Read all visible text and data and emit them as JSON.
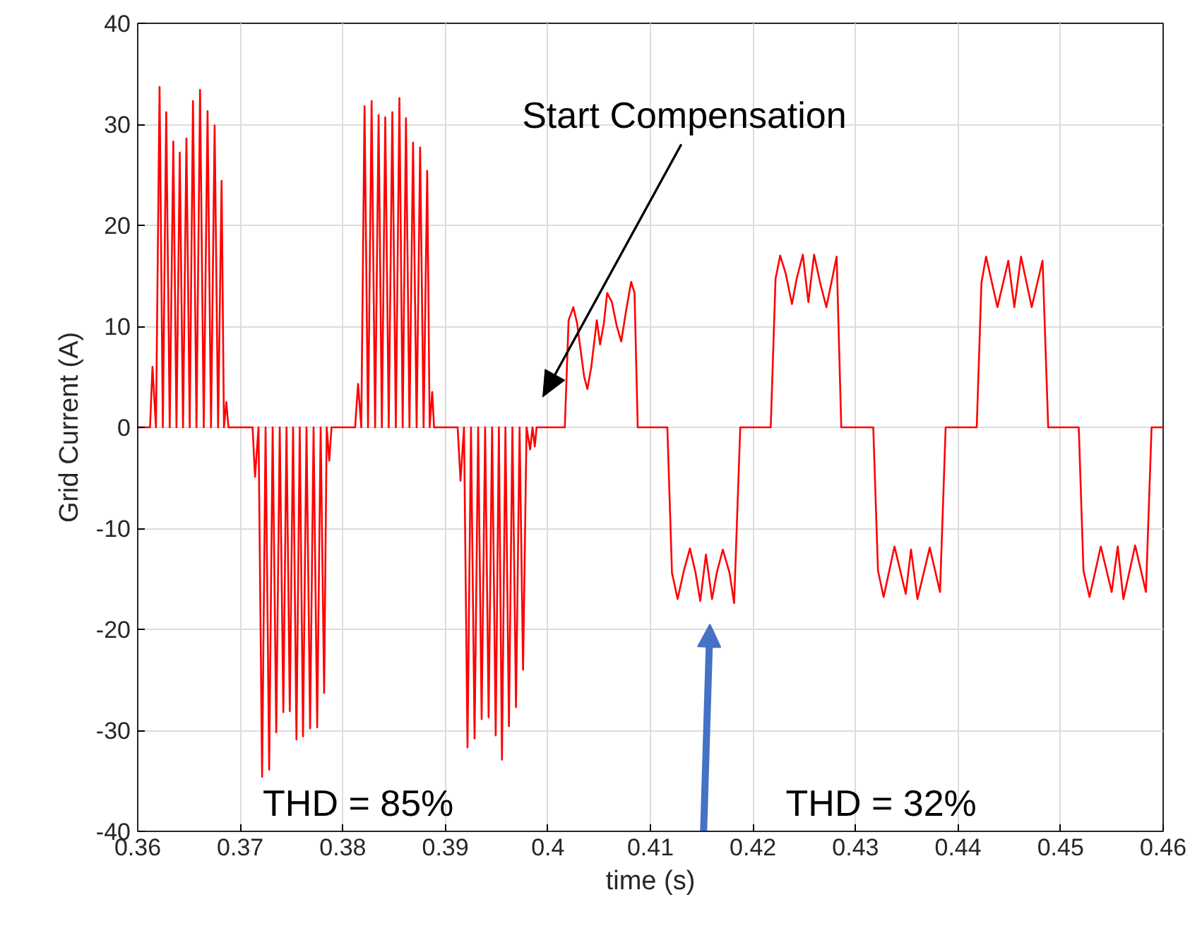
{
  "chart_data": {
    "type": "line",
    "xlabel": "time (s)",
    "ylabel": "Grid Current (A)",
    "xlim": [
      0.36,
      0.46
    ],
    "ylim": [
      -40,
      40
    ],
    "xticks": [
      0.36,
      0.37,
      0.38,
      0.39,
      0.4,
      0.41,
      0.42,
      0.43,
      0.44,
      0.45,
      0.46
    ],
    "yticks": [
      -40,
      -30,
      -20,
      -10,
      0,
      10,
      20,
      30,
      40
    ],
    "grid": true,
    "marker": "none",
    "line_style": "solid",
    "annotations": [
      "Start Compensation",
      "THD = 85%",
      "THD = 32%"
    ],
    "series": [
      {
        "color": "#ff0000",
        "x": [
          0.36,
          0.3612,
          0.36144,
          0.36178,
          0.36213,
          0.36245,
          0.36278,
          0.36312,
          0.36347,
          0.36378,
          0.3641,
          0.36442,
          0.36475,
          0.36507,
          0.36539,
          0.36573,
          0.36608,
          0.36644,
          0.36681,
          0.36715,
          0.3675,
          0.36784,
          0.36818,
          0.36841,
          0.36864,
          0.36885,
          0.3712,
          0.37144,
          0.37178,
          0.37213,
          0.37247,
          0.37282,
          0.37316,
          0.37351,
          0.37385,
          0.3742,
          0.37451,
          0.37483,
          0.37515,
          0.37548,
          0.3758,
          0.37612,
          0.37646,
          0.37681,
          0.37715,
          0.3775,
          0.37784,
          0.37818,
          0.37843,
          0.37868,
          0.3789,
          0.3812,
          0.38149,
          0.3818,
          0.38212,
          0.38246,
          0.38281,
          0.38315,
          0.38349,
          0.38381,
          0.38414,
          0.38448,
          0.38483,
          0.38517,
          0.38552,
          0.38584,
          0.38616,
          0.3865,
          0.38685,
          0.3872,
          0.38754,
          0.38788,
          0.38823,
          0.38847,
          0.38872,
          0.3889,
          0.3912,
          0.39148,
          0.39182,
          0.39216,
          0.3925,
          0.39285,
          0.3932,
          0.39354,
          0.39388,
          0.39422,
          0.39456,
          0.39491,
          0.39522,
          0.39552,
          0.39586,
          0.3962,
          0.39654,
          0.39689,
          0.39724,
          0.39758,
          0.39792,
          0.39827,
          0.3985,
          0.39872,
          0.3989,
          0.40165,
          0.40202,
          0.40248,
          0.40285,
          0.40317,
          0.40354,
          0.40385,
          0.40422,
          0.40477,
          0.40509,
          0.40546,
          0.40578,
          0.40624,
          0.4067,
          0.40715,
          0.40762,
          0.40812,
          0.40845,
          0.40876,
          0.41165,
          0.4121,
          0.41265,
          0.41326,
          0.41385,
          0.4144,
          0.41486,
          0.41541,
          0.41601,
          0.41647,
          0.41706,
          0.41771,
          0.41816,
          0.41876,
          0.42173,
          0.4222,
          0.42265,
          0.4232,
          0.4238,
          0.42426,
          0.42486,
          0.4254,
          0.42596,
          0.42655,
          0.42716,
          0.42816,
          0.42861,
          0.43173,
          0.43219,
          0.43274,
          0.4338,
          0.4349,
          0.43541,
          0.43604,
          0.43724,
          0.43824,
          0.43879,
          0.44182,
          0.44228,
          0.44273,
          0.44384,
          0.4449,
          0.44549,
          0.44614,
          0.44718,
          0.44824,
          0.44879,
          0.45177,
          0.45223,
          0.45282,
          0.45392,
          0.45498,
          0.45557,
          0.45612,
          0.45727,
          0.45832,
          0.45887,
          0.46
        ],
        "values": [
          0,
          0,
          6.0,
          0,
          33.7,
          0,
          31.2,
          0,
          28.3,
          0,
          27.2,
          0,
          28.6,
          0,
          32.3,
          0,
          33.4,
          0,
          31.3,
          0,
          29.9,
          0,
          24.4,
          0,
          2.5,
          0,
          0,
          -4.9,
          0,
          -34.6,
          0,
          -33.9,
          0,
          -30.2,
          0,
          -28.2,
          0,
          -28.1,
          0,
          -30.9,
          0,
          -30.6,
          0,
          -29.8,
          0,
          -29.7,
          0,
          -26.3,
          0,
          -3.3,
          0,
          0,
          4.3,
          0,
          31.8,
          0,
          32.3,
          0,
          30.9,
          0,
          30.7,
          0,
          31.2,
          0,
          32.6,
          0,
          30.6,
          0,
          28.2,
          0,
          27.7,
          0,
          25.4,
          0,
          3.5,
          0,
          0,
          -5.3,
          0,
          -31.7,
          0,
          -30.8,
          0,
          -28.9,
          0,
          -28.7,
          0,
          -30.5,
          0,
          -32.9,
          0,
          -29.6,
          0,
          -27.7,
          0,
          -24.0,
          0,
          -2.2,
          0,
          -1.9,
          0,
          0,
          10.6,
          11.9,
          10.3,
          7.8,
          5.0,
          3.8,
          5.9,
          10.6,
          8.2,
          10.3,
          13.3,
          12.4,
          10.1,
          8.5,
          11.5,
          14.4,
          13.3,
          0,
          0,
          -14.4,
          -17.0,
          -14.2,
          -12.0,
          -14.4,
          -17.2,
          -12.6,
          -17.0,
          -14.4,
          -12.1,
          -14.4,
          -17.4,
          0,
          0,
          14.7,
          17.0,
          15.2,
          12.2,
          14.7,
          17.1,
          12.4,
          17.1,
          14.3,
          11.9,
          16.9,
          0,
          0,
          -14.2,
          -16.8,
          -11.8,
          -16.5,
          -12.1,
          -17.0,
          -11.9,
          -16.3,
          0,
          0,
          14.3,
          16.9,
          11.9,
          16.5,
          11.9,
          16.9,
          11.9,
          16.5,
          0,
          0,
          -14.2,
          -16.8,
          -11.8,
          -16.3,
          -11.8,
          -17.0,
          -11.7,
          -16.3,
          0,
          0
        ]
      }
    ]
  }
}
